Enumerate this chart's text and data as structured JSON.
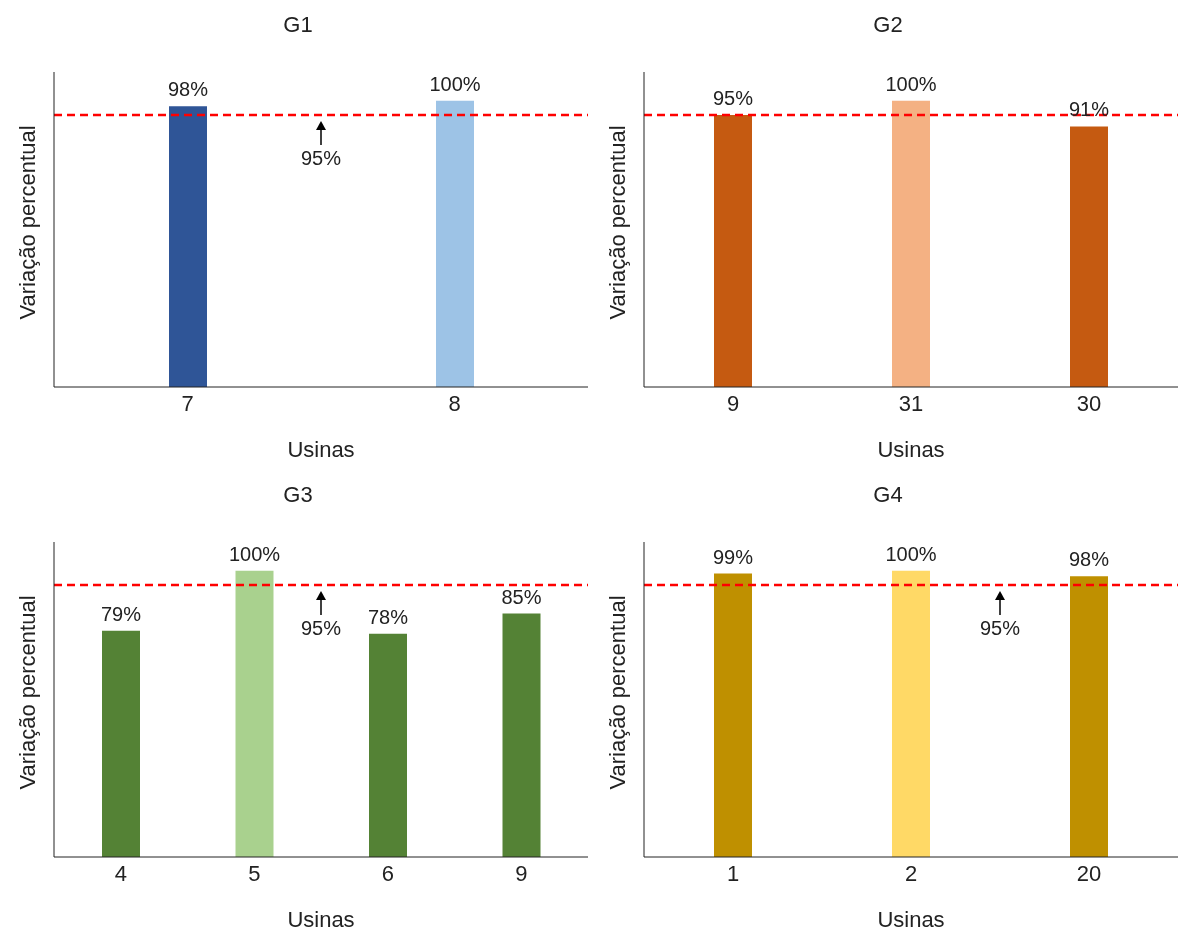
{
  "chart_data": [
    {
      "type": "bar",
      "title": "G1",
      "xlabel": "Usinas",
      "ylabel": "Variação percentual",
      "categories": [
        "7",
        "8"
      ],
      "values": [
        98,
        100
      ],
      "value_labels": [
        "98%",
        "100%"
      ],
      "colors": [
        "#2f5597",
        "#9dc3e6"
      ],
      "ylim": [
        0,
        110
      ],
      "ref_lines": [
        {
          "axis": "y",
          "value": 95,
          "label": "95%",
          "color": "#ff0000",
          "line_style": "dashed"
        }
      ]
    },
    {
      "type": "bar",
      "title": "G2",
      "xlabel": "Usinas",
      "ylabel": "Variação percentual",
      "categories": [
        "9",
        "31",
        "30"
      ],
      "values": [
        95,
        100,
        91
      ],
      "value_labels": [
        "95%",
        "100%",
        "91%"
      ],
      "colors": [
        "#c55a11",
        "#f4b183",
        "#c55a11"
      ],
      "ylim": [
        0,
        110
      ],
      "ref_lines": [
        {
          "axis": "y",
          "value": 95,
          "color": "#ff0000",
          "line_style": "dashed"
        }
      ]
    },
    {
      "type": "bar",
      "title": "G3",
      "xlabel": "Usinas",
      "ylabel": "Variação percentual",
      "categories": [
        "4",
        "5",
        "6",
        "9"
      ],
      "values": [
        79,
        100,
        78,
        85
      ],
      "value_labels": [
        "79%",
        "100%",
        "78%",
        "85%"
      ],
      "colors": [
        "#548235",
        "#a9d18e",
        "#548235",
        "#548235"
      ],
      "ylim": [
        0,
        110
      ],
      "ref_lines": [
        {
          "axis": "y",
          "value": 95,
          "label": "95%",
          "color": "#ff0000",
          "line_style": "dashed"
        }
      ]
    },
    {
      "type": "bar",
      "title": "G4",
      "xlabel": "Usinas",
      "ylabel": "Variação percentual",
      "categories": [
        "1",
        "2",
        "20"
      ],
      "values": [
        99,
        100,
        98
      ],
      "value_labels": [
        "99%",
        "100%",
        "98%"
      ],
      "colors": [
        "#bf9000",
        "#ffd966",
        "#bf9000"
      ],
      "ylim": [
        0,
        110
      ],
      "ref_lines": [
        {
          "axis": "y",
          "value": 95,
          "label": "95%",
          "color": "#ff0000",
          "line_style": "dashed"
        }
      ]
    }
  ]
}
